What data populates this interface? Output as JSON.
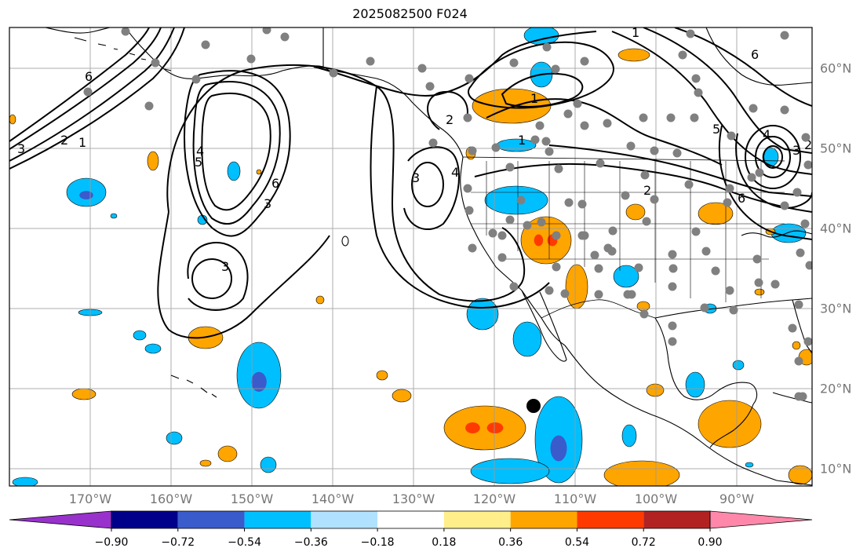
{
  "title": "2025082500 F024",
  "lon_labels": [
    "170°W",
    "160°W",
    "150°W",
    "140°W",
    "130°W",
    "120°W",
    "110°W",
    "100°W",
    "90°W"
  ],
  "lat_labels": [
    "60°N",
    "50°N",
    "40°N",
    "30°N",
    "20°N",
    "10°N"
  ],
  "colorbar": {
    "labels": [
      "−0.90",
      "−0.72",
      "−0.54",
      "−0.36",
      "−0.18",
      "0.18",
      "0.36",
      "0.54",
      "0.72",
      "0.90"
    ],
    "colors": [
      "#9932cc",
      "#00008b",
      "#3a5bcc",
      "#00bfff",
      "#b0e2ff",
      "#ffffff",
      "#ffee8a",
      "#ffa500",
      "#ff3a00",
      "#b22222",
      "#ff88aa"
    ]
  },
  "colors": {
    "neg_light": "#00bfff",
    "neg_dark": "#3a5bcc",
    "pos_light": "#ffa500",
    "pos_dark": "#ff3a00",
    "station": "#808080",
    "marker": "#000000"
  },
  "contour_labels": [
    "6",
    "3",
    "2",
    "1",
    "5",
    "4",
    "3",
    "6",
    "3",
    "4",
    "3",
    "2",
    "1",
    "2",
    "1",
    "6",
    "5",
    "4",
    "6",
    "3",
    "1",
    "2"
  ]
}
